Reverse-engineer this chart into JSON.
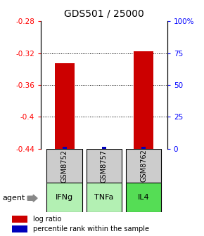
{
  "title": "GDS501 / 25000",
  "samples": [
    "GSM8752",
    "GSM8757",
    "GSM8762"
  ],
  "agents": [
    "IFNg",
    "TNFa",
    "IL4"
  ],
  "log_ratio_values": [
    -0.333,
    -0.441,
    -0.318
  ],
  "log_ratio_baseline": -0.44,
  "percentile_pct": [
    1.5,
    1.5,
    1.5
  ],
  "ylim_left": [
    -0.44,
    -0.28
  ],
  "ylim_right": [
    0,
    100
  ],
  "left_ticks": [
    -0.28,
    -0.32,
    -0.36,
    -0.4,
    -0.44
  ],
  "right_ticks": [
    100,
    75,
    50,
    25,
    0
  ],
  "red_bar_color": "#cc0000",
  "blue_bar_color": "#0000bb",
  "agent_colors": [
    "#b3f0b3",
    "#b3f0b3",
    "#55dd55"
  ],
  "sample_bg_color": "#cccccc",
  "agent_label": "agent",
  "legend_log_ratio": "log ratio",
  "legend_percentile": "percentile rank within the sample",
  "bar_width": 0.5
}
